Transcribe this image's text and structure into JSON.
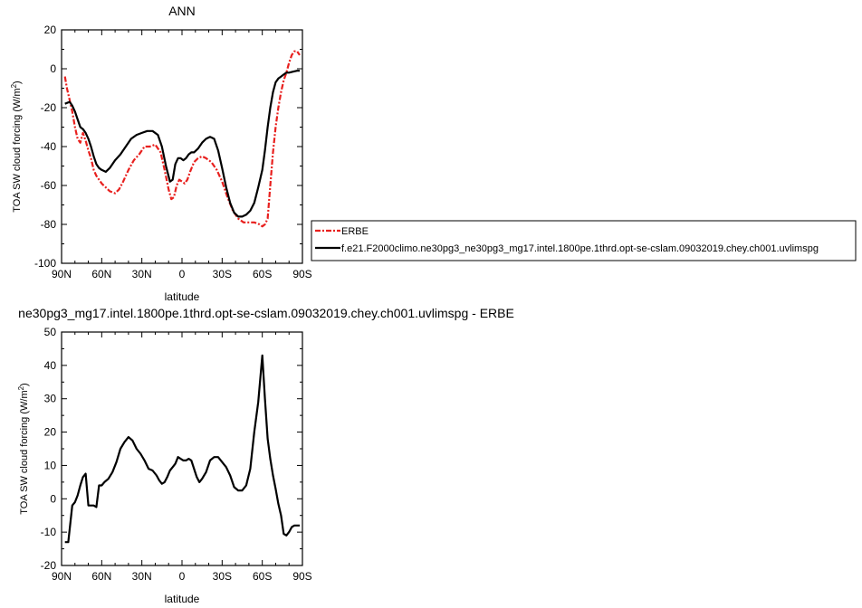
{
  "chart_data": [
    {
      "type": "line",
      "title": "ANN",
      "xlabel": "latitude",
      "ylabel": "TOA SW cloud forcing (W/m",
      "ylabel_sup": "2",
      "ylabel_suffix": ")",
      "xlim": [
        90,
        -90
      ],
      "ylim": [
        -100,
        20
      ],
      "xticks": [
        90,
        60,
        30,
        0,
        -30,
        -60,
        -90
      ],
      "xtick_labels": [
        "90N",
        "60N",
        "30N",
        "0",
        "30S",
        "60S",
        "90S"
      ],
      "yticks": [
        -100,
        -80,
        -60,
        -40,
        -20,
        0,
        20
      ],
      "ytick_labels": [
        "-100",
        "-80",
        "-60",
        "-40",
        "-20",
        "0",
        "20"
      ],
      "legend_position": "right",
      "series": [
        {
          "name": "ERBE",
          "color": "#e8201e",
          "dash": "dashed",
          "x": [
            87.5,
            86,
            84,
            82,
            80,
            78,
            76,
            74,
            72,
            70,
            68,
            66,
            64,
            62,
            60,
            57,
            54,
            50,
            47,
            44,
            40,
            36,
            32,
            28,
            24,
            20,
            16,
            13,
            10,
            8,
            6,
            4,
            2,
            0,
            -2,
            -4,
            -6,
            -9,
            -12,
            -15,
            -18,
            -22,
            -26,
            -30,
            -34,
            -38,
            -42,
            -46,
            -50,
            -54,
            -58,
            -60,
            -62,
            -64,
            -66,
            -68,
            -70,
            -72,
            -74,
            -76,
            -78,
            -80,
            -82,
            -84,
            -86,
            -88
          ],
          "y": [
            -4,
            -10,
            -16,
            -22,
            -30,
            -36,
            -38,
            -33,
            -37,
            -42,
            -46,
            -52,
            -55,
            -57,
            -59,
            -61,
            -63,
            -64,
            -62,
            -58,
            -52,
            -47,
            -44,
            -40,
            -40,
            -39,
            -43,
            -52,
            -62,
            -67,
            -66,
            -60,
            -57,
            -58,
            -59,
            -57,
            -53,
            -48,
            -46,
            -45,
            -46,
            -48,
            -52,
            -58,
            -66,
            -73,
            -77,
            -79,
            -79,
            -79,
            -80,
            -81,
            -80,
            -77,
            -60,
            -43,
            -30,
            -20,
            -12,
            -6,
            -2,
            3,
            7,
            9,
            9,
            7
          ]
        },
        {
          "name": "f.e21.F2000climo.ne30pg3_ne30pg3_mg17.intel.1800pe.1thrd.opt-se-cslam.09032019.chey.ch001.uvlimspg",
          "color": "#000000",
          "dash": "solid",
          "x": [
            87.5,
            84,
            82,
            80,
            78,
            76,
            74,
            72,
            70,
            68,
            66,
            64,
            62,
            60,
            57,
            54,
            50,
            46,
            42,
            38,
            34,
            30,
            26,
            22,
            18,
            15,
            12,
            9,
            7,
            5,
            3,
            1,
            -1,
            -3,
            -5,
            -7,
            -9,
            -12,
            -15,
            -18,
            -21,
            -24,
            -27,
            -30,
            -33,
            -36,
            -39,
            -42,
            -45,
            -48,
            -51,
            -54,
            -57,
            -60,
            -62,
            -64,
            -66,
            -68,
            -70,
            -72,
            -74,
            -76,
            -78,
            -80,
            -83,
            -86,
            -88
          ],
          "y": [
            -18,
            -17,
            -19,
            -22,
            -26,
            -30,
            -31,
            -33,
            -36,
            -40,
            -45,
            -49,
            -51,
            -52,
            -53,
            -51,
            -47,
            -44,
            -40,
            -36,
            -34,
            -33,
            -32,
            -32,
            -34,
            -40,
            -50,
            -58,
            -57,
            -49,
            -46,
            -46,
            -47,
            -46,
            -44,
            -43,
            -43,
            -41,
            -38,
            -36,
            -35,
            -36,
            -42,
            -51,
            -61,
            -69,
            -74,
            -76,
            -76,
            -75,
            -73,
            -69,
            -61,
            -52,
            -42,
            -30,
            -20,
            -12,
            -7,
            -5,
            -4,
            -3,
            -2,
            -2,
            -1.5,
            -1,
            -1
          ]
        }
      ]
    },
    {
      "type": "line",
      "title": "ne30pg3_mg17.intel.1800pe.1thrd.opt-se-cslam.09032019.chey.ch001.uvlimspg - ERBE",
      "xlabel": "latitude",
      "ylabel": "TOA SW cloud forcing (W/m",
      "ylabel_sup": "2",
      "ylabel_suffix": ")",
      "xlim": [
        90,
        -90
      ],
      "ylim": [
        -20,
        50
      ],
      "xticks": [
        90,
        60,
        30,
        0,
        -30,
        -60,
        -90
      ],
      "xtick_labels": [
        "90N",
        "60N",
        "30N",
        "0",
        "30S",
        "60S",
        "90S"
      ],
      "yticks": [
        -20,
        -10,
        0,
        10,
        20,
        30,
        40,
        50
      ],
      "ytick_labels": [
        "-20",
        "-10",
        "0",
        "10",
        "20",
        "30",
        "40",
        "50"
      ],
      "series": [
        {
          "color": "#000000",
          "dash": "solid",
          "x": [
            87.5,
            85,
            82,
            80,
            78,
            76,
            74,
            72,
            70,
            68,
            66,
            64,
            62,
            60,
            58,
            55,
            52,
            49,
            46,
            43,
            40,
            37,
            34,
            31,
            28,
            25,
            22,
            19,
            17,
            15,
            13,
            11,
            9,
            7,
            5,
            3,
            1,
            -1,
            -3,
            -5,
            -7,
            -9,
            -11,
            -13,
            -15,
            -18,
            -21,
            -24,
            -27,
            -30,
            -33,
            -36,
            -39,
            -42,
            -45,
            -48,
            -51,
            -54,
            -57,
            -60,
            -62,
            -64,
            -66,
            -68,
            -70,
            -72,
            -74,
            -76,
            -78,
            -80,
            -82,
            -84,
            -86,
            -88
          ],
          "y": [
            -13,
            -13,
            -2,
            -1,
            1,
            4,
            6.5,
            7.5,
            -2,
            -2,
            -2,
            -2.5,
            4,
            4,
            5,
            6,
            8,
            11,
            15,
            17,
            18.5,
            17.5,
            15,
            13.5,
            11.5,
            9,
            8.5,
            7,
            5.5,
            4.5,
            5,
            6.5,
            8.5,
            9.5,
            10.5,
            12.5,
            12,
            11.5,
            11.5,
            12,
            11.5,
            9,
            6.5,
            5,
            6,
            8,
            11.5,
            12.5,
            12.5,
            11,
            9.5,
            7,
            3.5,
            2.5,
            2.5,
            4,
            9,
            20,
            29,
            43,
            30,
            18,
            12,
            7,
            3,
            -1.5,
            -5,
            -10.5,
            -11,
            -10,
            -8.5,
            -8,
            -8,
            -8
          ]
        }
      ]
    }
  ]
}
